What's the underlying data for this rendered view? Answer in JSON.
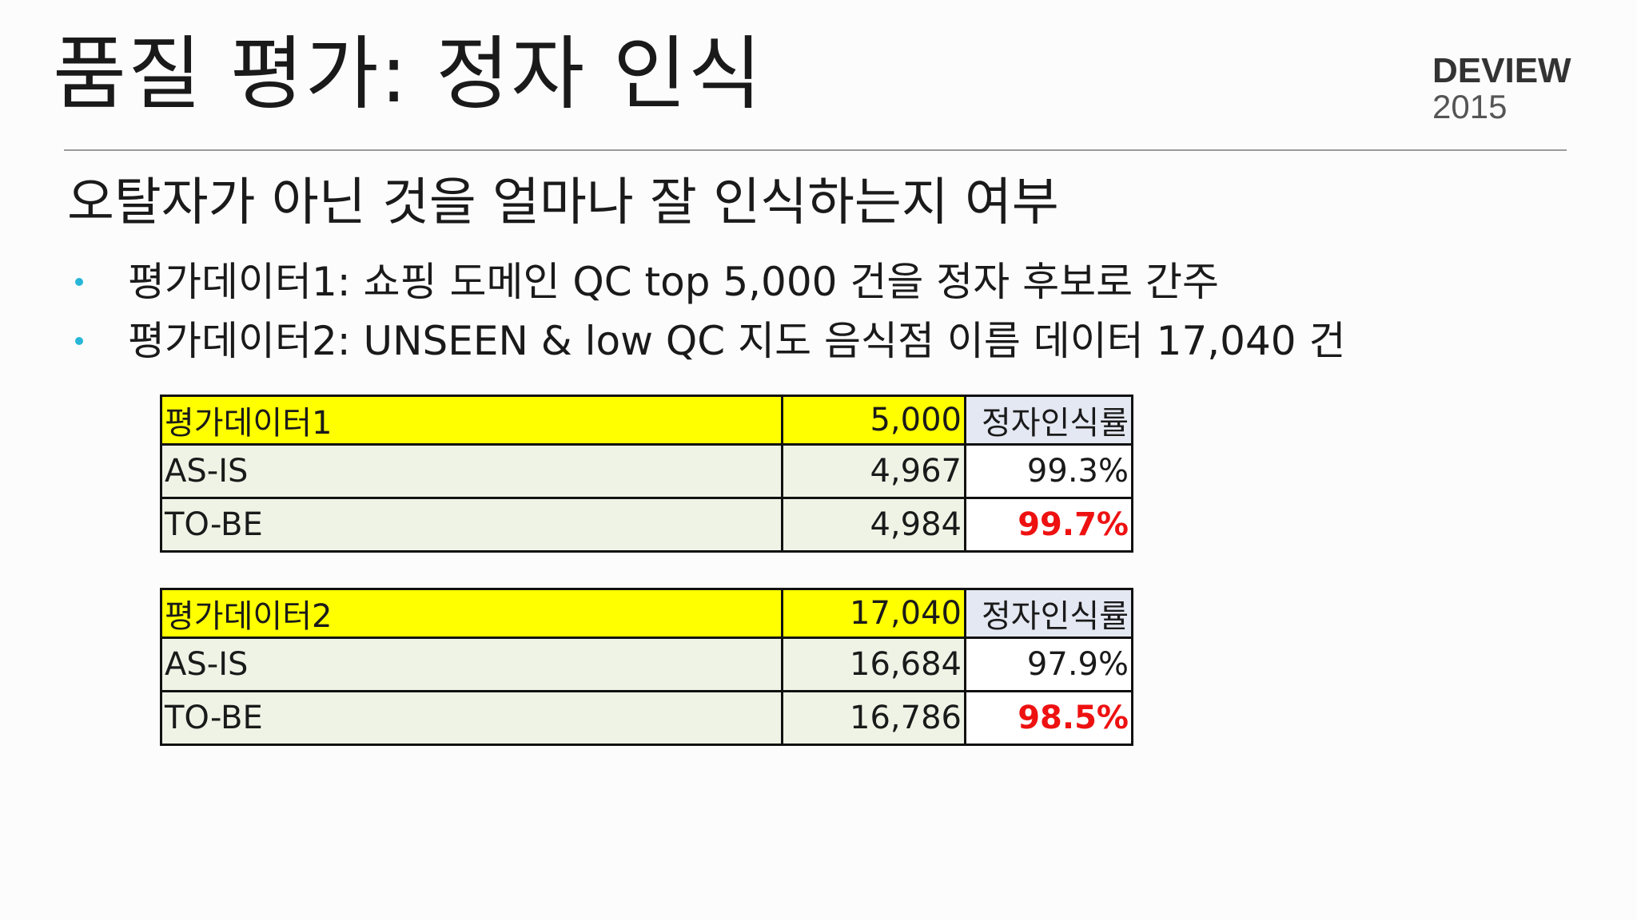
{
  "slide": {
    "title": "품질 평가: 정자 인식",
    "brand": {
      "name": "DEVIEW",
      "year": "2015"
    },
    "subtitle": "오탈자가 아닌 것을 얼마나 잘 인식하는지 여부",
    "bullets": [
      "평가데이터1: 쇼핑 도메인 QC top 5,000 건을 정자 후보로 간주",
      "평가데이터2: UNSEEN & low QC 지도 음식점 이름 데이터 17,040 건"
    ],
    "accent_color": "#27b6d8",
    "highlight_color": "#ffff00",
    "emphasis_color": "#ee1111"
  },
  "tables": [
    {
      "header": {
        "label": "평가데이터1",
        "count": "5,000",
        "metric": "정자인식률"
      },
      "rows": [
        {
          "label": "AS-IS",
          "count": "4,967",
          "rate": "99.3%"
        },
        {
          "label": "TO-BE",
          "count": "4,984",
          "rate": "99.7%"
        }
      ]
    },
    {
      "header": {
        "label": "평가데이터2",
        "count": "17,040",
        "metric": "정자인식률"
      },
      "rows": [
        {
          "label": "AS-IS",
          "count": "16,684",
          "rate": "97.9%"
        },
        {
          "label": "TO-BE",
          "count": "16,786",
          "rate": "98.5%"
        }
      ]
    }
  ]
}
